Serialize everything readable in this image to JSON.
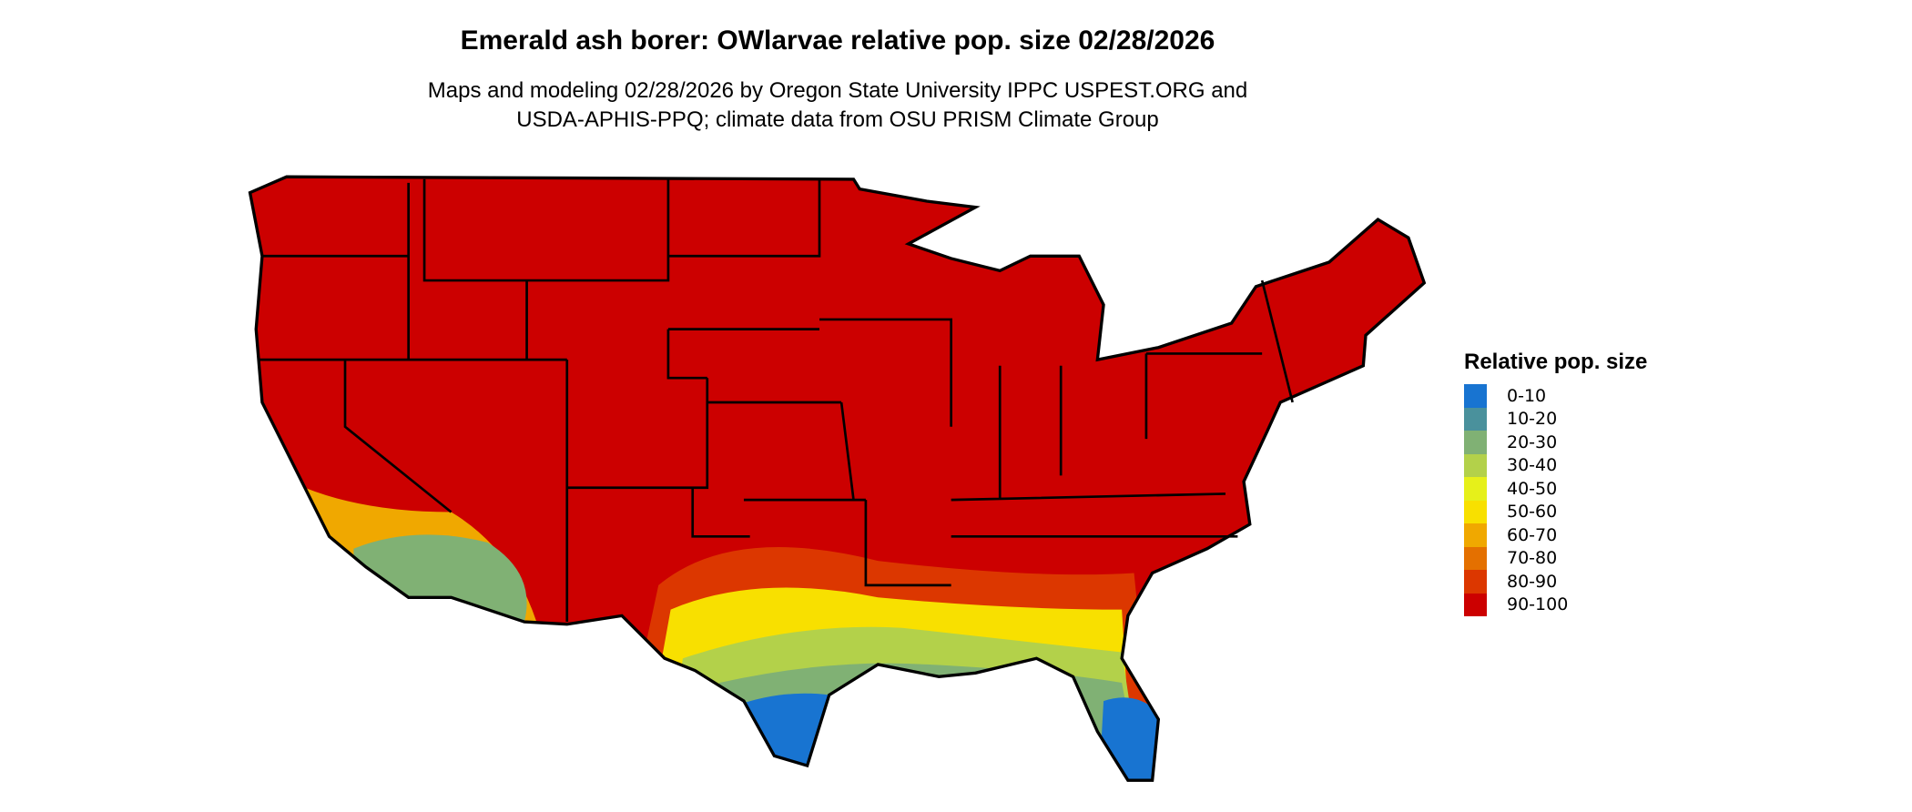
{
  "title": "Emerald ash borer: OWlarvae relative pop. size 02/28/2026",
  "subtitle_line1": "Maps and modeling 02/28/2026 by Oregon State University IPPC USPEST.ORG and",
  "subtitle_line2": "USDA-APHIS-PPQ; climate data from OSU PRISM Climate Group",
  "legend": {
    "title": "Relative pop. size",
    "items": [
      {
        "label": "0-10",
        "color": "#1874d1"
      },
      {
        "label": "10-20",
        "color": "#4a919c"
      },
      {
        "label": "20-30",
        "color": "#80b174"
      },
      {
        "label": "30-40",
        "color": "#b3d14a"
      },
      {
        "label": "40-50",
        "color": "#e6f01a"
      },
      {
        "label": "50-60",
        "color": "#f8e000"
      },
      {
        "label": "60-70",
        "color": "#f0a800"
      },
      {
        "label": "70-80",
        "color": "#e47000"
      },
      {
        "label": "80-90",
        "color": "#dc3700"
      },
      {
        "label": "90-100",
        "color": "#cc0000"
      }
    ]
  }
}
